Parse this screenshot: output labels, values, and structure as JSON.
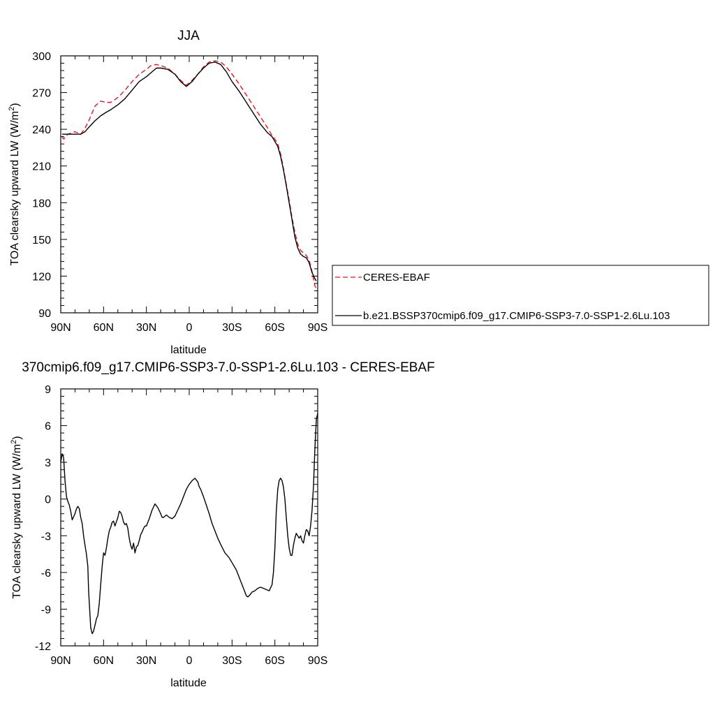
{
  "chart_data": [
    {
      "type": "line",
      "title": "JJA",
      "xlabel": "latitude",
      "ylabel": "TOA clearsky upward LW (W/m",
      "ylabel_sup": "2",
      "ylabel_end": ")",
      "xlim": [
        90,
        -90
      ],
      "ylim": [
        90,
        300
      ],
      "x_ticks": [
        90,
        60,
        30,
        0,
        -30,
        -60,
        -90
      ],
      "x_tick_labels": [
        "90N",
        "60N",
        "30N",
        "0",
        "30S",
        "60S",
        "90S"
      ],
      "y_ticks": [
        90,
        120,
        150,
        180,
        210,
        240,
        270,
        300
      ],
      "y_tick_labels": [
        "90",
        "120",
        "150",
        "180",
        "210",
        "240",
        "270",
        "300"
      ],
      "grid": false,
      "legend_position": "right",
      "series": [
        {
          "name": "CERES-EBAF",
          "color": "#e8141b",
          "dash": "dashed",
          "x": [
            89,
            88,
            85,
            80,
            76,
            73,
            70,
            66,
            62,
            58,
            55,
            50,
            45,
            40,
            35,
            30,
            27,
            23,
            20,
            15,
            10,
            6,
            2,
            -2,
            -6,
            -10,
            -14,
            -18,
            -22,
            -26,
            -30,
            -35,
            -40,
            -45,
            -50,
            -55,
            -58,
            -60,
            -62,
            -64,
            -66,
            -68,
            -70,
            -72,
            -74,
            -76,
            -78,
            -80,
            -82,
            -84,
            -86,
            -88,
            -89
          ],
          "y": [
            234,
            232,
            236,
            238,
            236,
            241,
            248,
            259,
            263,
            262,
            262,
            266,
            272,
            279,
            285,
            289,
            292,
            293,
            292,
            290,
            285,
            280,
            276,
            280,
            285,
            291,
            295,
            296,
            295,
            291,
            285,
            277,
            268,
            259,
            250,
            241,
            235,
            232,
            228,
            220,
            208,
            195,
            182,
            168,
            156,
            146,
            141,
            139,
            137,
            133,
            124,
            112,
            110
          ]
        },
        {
          "name": "b.e21.BSSP370cmip6.f09_g17.CMIP6-SSP3-7.0-SSP1-2.6Lu.103",
          "color": "#000000",
          "dash": "solid",
          "x": [
            89,
            88,
            85,
            80,
            76,
            73,
            70,
            66,
            62,
            58,
            55,
            50,
            45,
            40,
            35,
            30,
            27,
            23,
            20,
            15,
            10,
            6,
            2,
            -2,
            -6,
            -10,
            -14,
            -18,
            -22,
            -26,
            -30,
            -35,
            -40,
            -45,
            -50,
            -55,
            -58,
            -60,
            -62,
            -64,
            -66,
            -68,
            -70,
            -72,
            -74,
            -76,
            -78,
            -80,
            -82,
            -84,
            -86,
            -88,
            -89
          ],
          "y": [
            236,
            236,
            236,
            236,
            236,
            238,
            242,
            247,
            251,
            254,
            256,
            260,
            265,
            272,
            279,
            283,
            286,
            290,
            290,
            289,
            285,
            279,
            275,
            279,
            285,
            290,
            294,
            295,
            293,
            287,
            279,
            271,
            262,
            253,
            244,
            237,
            234,
            230,
            226,
            218,
            207,
            194,
            180,
            166,
            152,
            143,
            138,
            136,
            135,
            131,
            123,
            118,
            116
          ]
        }
      ]
    },
    {
      "type": "line",
      "title": "370cmip6.f09_g17.CMIP6-SSP3-7.0-SSP1-2.6Lu.103 - CERES-EBAF",
      "xlabel": "latitude",
      "ylabel": "TOA clearsky upward LW (W/m",
      "ylabel_sup": "2",
      "ylabel_end": ")",
      "xlim": [
        90,
        -90
      ],
      "ylim": [
        -12,
        9
      ],
      "x_ticks": [
        90,
        60,
        30,
        0,
        -30,
        -60,
        -90
      ],
      "x_tick_labels": [
        "90N",
        "60N",
        "30N",
        "0",
        "30S",
        "60S",
        "90S"
      ],
      "y_ticks": [
        -12,
        -9,
        -6,
        -3,
        0,
        3,
        6,
        9
      ],
      "y_tick_labels": [
        "-12",
        "-9",
        "-6",
        "-3",
        "0",
        "3",
        "6",
        "9"
      ],
      "grid": false,
      "series": [
        {
          "color": "#000000",
          "dash": "solid",
          "x": [
            90,
            89,
            88,
            87,
            86,
            85,
            84,
            83,
            82,
            80,
            79,
            78,
            77,
            76,
            75,
            74,
            73,
            72,
            71,
            70.5,
            70,
            69,
            68,
            67,
            66,
            65,
            64,
            63,
            62,
            61,
            60,
            59,
            58,
            57,
            56,
            55,
            54,
            53,
            52,
            50,
            49,
            48,
            47,
            46,
            45,
            44,
            43,
            42,
            41,
            40,
            39,
            38,
            37,
            36,
            35,
            34,
            33,
            32,
            31,
            30,
            28,
            26,
            24,
            22,
            20,
            19,
            18,
            16,
            14,
            12,
            10,
            8,
            6,
            4,
            2,
            0,
            -2,
            -4,
            -6,
            -7,
            -8,
            -10,
            -12,
            -14,
            -16,
            -18,
            -20,
            -22,
            -25,
            -28,
            -30,
            -33,
            -36,
            -38,
            -40,
            -41,
            -42,
            -44,
            -46,
            -48,
            -50,
            -52,
            -54,
            -56,
            -58,
            -59,
            -60,
            -61,
            -62,
            -63,
            -64,
            -65,
            -66,
            -67,
            -68,
            -69,
            -70,
            -71,
            -72,
            -73,
            -74,
            -75,
            -76,
            -77,
            -78,
            -79,
            -80,
            -81,
            -82,
            -83,
            -84,
            -85,
            -86,
            -87,
            -88,
            -89,
            -90
          ],
          "y": [
            3.0,
            3.7,
            3.4,
            1.5,
            0.2,
            -0.2,
            -0.5,
            -1.0,
            -1.7,
            -1.2,
            -0.8,
            -0.6,
            -0.8,
            -1.5,
            -2.0,
            -3.0,
            -3.8,
            -4.5,
            -5.5,
            -7.5,
            -8.5,
            -10.5,
            -11.0,
            -10.8,
            -10.3,
            -9.8,
            -9.5,
            -8.5,
            -7.0,
            -5.5,
            -4.4,
            -4.6,
            -4.0,
            -3.2,
            -2.6,
            -2.3,
            -1.9,
            -1.8,
            -2.2,
            -1.5,
            -1.0,
            -1.1,
            -1.4,
            -1.9,
            -2.1,
            -2.0,
            -2.4,
            -3.2,
            -3.8,
            -4.1,
            -3.6,
            -4.4,
            -3.9,
            -3.8,
            -3.4,
            -2.9,
            -2.7,
            -2.4,
            -2.2,
            -2.2,
            -1.6,
            -0.9,
            -0.4,
            -0.7,
            -1.2,
            -1.5,
            -1.5,
            -1.3,
            -1.5,
            -1.6,
            -1.4,
            -0.9,
            -0.4,
            0.2,
            0.8,
            1.2,
            1.5,
            1.7,
            1.4,
            1.0,
            0.8,
            0.2,
            -0.5,
            -1.2,
            -2.0,
            -2.6,
            -3.2,
            -3.7,
            -4.4,
            -4.8,
            -5.2,
            -5.8,
            -6.7,
            -7.3,
            -7.9,
            -8.0,
            -7.9,
            -7.6,
            -7.5,
            -7.3,
            -7.2,
            -7.3,
            -7.4,
            -7.5,
            -7.0,
            -6.0,
            -4.0,
            -1.0,
            0.8,
            1.5,
            1.7,
            1.5,
            1.0,
            0.0,
            -1.5,
            -3.0,
            -4.0,
            -4.6,
            -4.6,
            -3.8,
            -3.2,
            -2.8,
            -3.0,
            -3.2,
            -3.0,
            -3.4,
            -3.6,
            -3.0,
            -2.5,
            -2.6,
            -3.0,
            -2.2,
            -1.0,
            1.0,
            4.0,
            6.5,
            7.0
          ]
        }
      ]
    }
  ]
}
